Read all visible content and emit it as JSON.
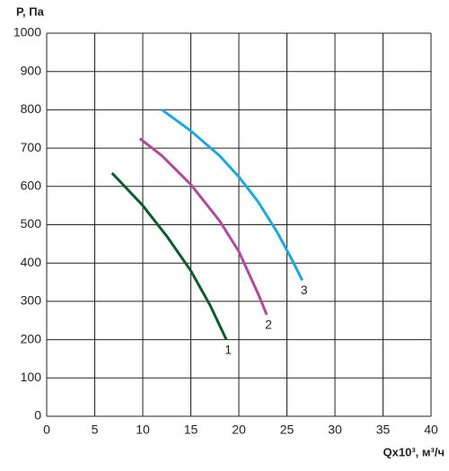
{
  "chart_data": {
    "type": "line",
    "y_label": "P, Па",
    "x_label": "Qx10³, м³/ч",
    "xlim": [
      0,
      40
    ],
    "xticks": [
      0,
      5,
      10,
      15,
      20,
      25,
      30,
      35,
      40
    ],
    "ylim": [
      0,
      1000
    ],
    "yticks": [
      0,
      100,
      200,
      300,
      400,
      500,
      600,
      700,
      800,
      900,
      1000
    ],
    "grid": true,
    "series": [
      {
        "name": "1",
        "color": "#0d5a2c",
        "x": [
          6.8,
          10,
          12.5,
          15,
          17,
          18.7
        ],
        "values": [
          635,
          550,
          470,
          380,
          290,
          200
        ]
      },
      {
        "name": "2",
        "color": "#b04a9a",
        "x": [
          9.7,
          12,
          15,
          18,
          20,
          22,
          22.9
        ],
        "values": [
          725,
          680,
          605,
          510,
          430,
          320,
          265
        ]
      },
      {
        "name": "3",
        "color": "#1ba8de",
        "x": [
          12,
          15,
          18,
          20,
          22,
          24,
          25.5,
          26.6
        ],
        "values": [
          800,
          745,
          680,
          625,
          560,
          480,
          410,
          355
        ]
      }
    ]
  }
}
